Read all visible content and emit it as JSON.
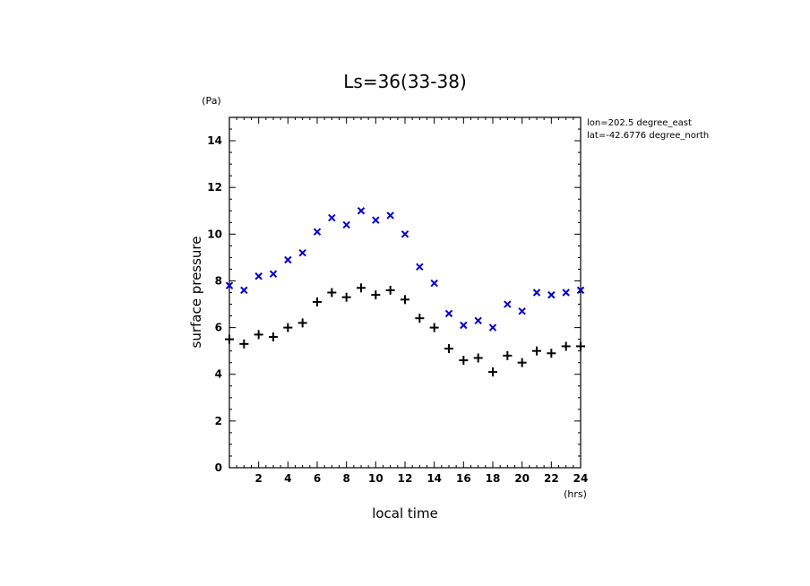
{
  "chart_data": {
    "type": "scatter",
    "title": "Ls=36(33-38)",
    "xlabel": "local time",
    "ylabel": "surface pressure",
    "xunit": "(hrs)",
    "yunit": "(Pa)",
    "xlim": [
      0,
      24
    ],
    "ylim": [
      0,
      15
    ],
    "xticks": [
      2,
      4,
      6,
      8,
      10,
      12,
      14,
      16,
      18,
      20,
      22,
      24
    ],
    "yticks": [
      0,
      2,
      4,
      6,
      8,
      10,
      12,
      14
    ],
    "annotations": [
      "lon=202.5 degree_east",
      "lat=-42.6776 degree_north"
    ],
    "grid": false,
    "series": [
      {
        "marker": "x",
        "color": "#0000cc",
        "x": [
          0,
          1,
          2,
          3,
          4,
          5,
          6,
          7,
          8,
          9,
          10,
          11,
          12,
          13,
          14,
          15,
          16,
          17,
          18,
          19,
          20,
          21,
          22,
          23,
          24
        ],
        "y": [
          7.8,
          7.6,
          8.2,
          8.3,
          8.9,
          9.2,
          10.1,
          10.7,
          10.4,
          11.0,
          10.6,
          10.8,
          10.0,
          8.6,
          7.9,
          6.6,
          6.1,
          6.3,
          6.0,
          7.0,
          6.7,
          7.5,
          7.4,
          7.5,
          7.6
        ]
      },
      {
        "marker": "+",
        "color": "#000000",
        "x": [
          0,
          1,
          2,
          3,
          4,
          5,
          6,
          7,
          8,
          9,
          10,
          11,
          12,
          13,
          14,
          15,
          16,
          17,
          18,
          19,
          20,
          21,
          22,
          23,
          24
        ],
        "y": [
          5.5,
          5.3,
          5.7,
          5.6,
          6.0,
          6.2,
          7.1,
          7.5,
          7.3,
          7.7,
          7.4,
          7.6,
          7.2,
          6.4,
          6.0,
          5.1,
          4.6,
          4.7,
          4.1,
          4.8,
          4.5,
          5.0,
          4.9,
          5.2,
          5.2
        ]
      }
    ]
  }
}
